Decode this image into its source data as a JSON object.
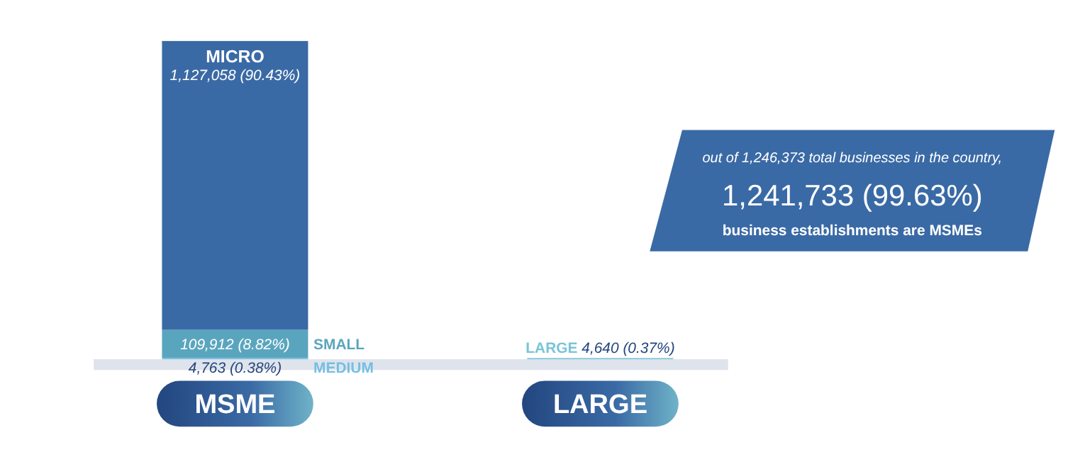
{
  "chart_data": {
    "type": "bar",
    "stacked": true,
    "categories": [
      "MSME",
      "LARGE"
    ],
    "series": [
      {
        "name": "MEDIUM",
        "color": "#74bfe3",
        "values": [
          4763,
          null
        ],
        "value_labels": [
          "4,763 (0.38%)",
          null
        ]
      },
      {
        "name": "SMALL",
        "color": "#5aa5be",
        "values": [
          109912,
          null
        ],
        "value_labels": [
          "109,912 (8.82%)",
          null
        ]
      },
      {
        "name": "MICRO",
        "color": "#3a6aa5",
        "values": [
          1127058,
          null
        ],
        "value_labels": [
          "1,127,058 (90.43%)",
          null
        ]
      },
      {
        "name": "LARGE",
        "color": "#7ac4d6",
        "values": [
          null,
          4640
        ],
        "value_labels": [
          null,
          "4,640 (0.37%)"
        ]
      }
    ],
    "annotations": [
      "out of 1,246,373 total businesses in the country,",
      "1,241,733 (99.63%)",
      "business establishments are MSMEs"
    ],
    "legend": false
  }
}
